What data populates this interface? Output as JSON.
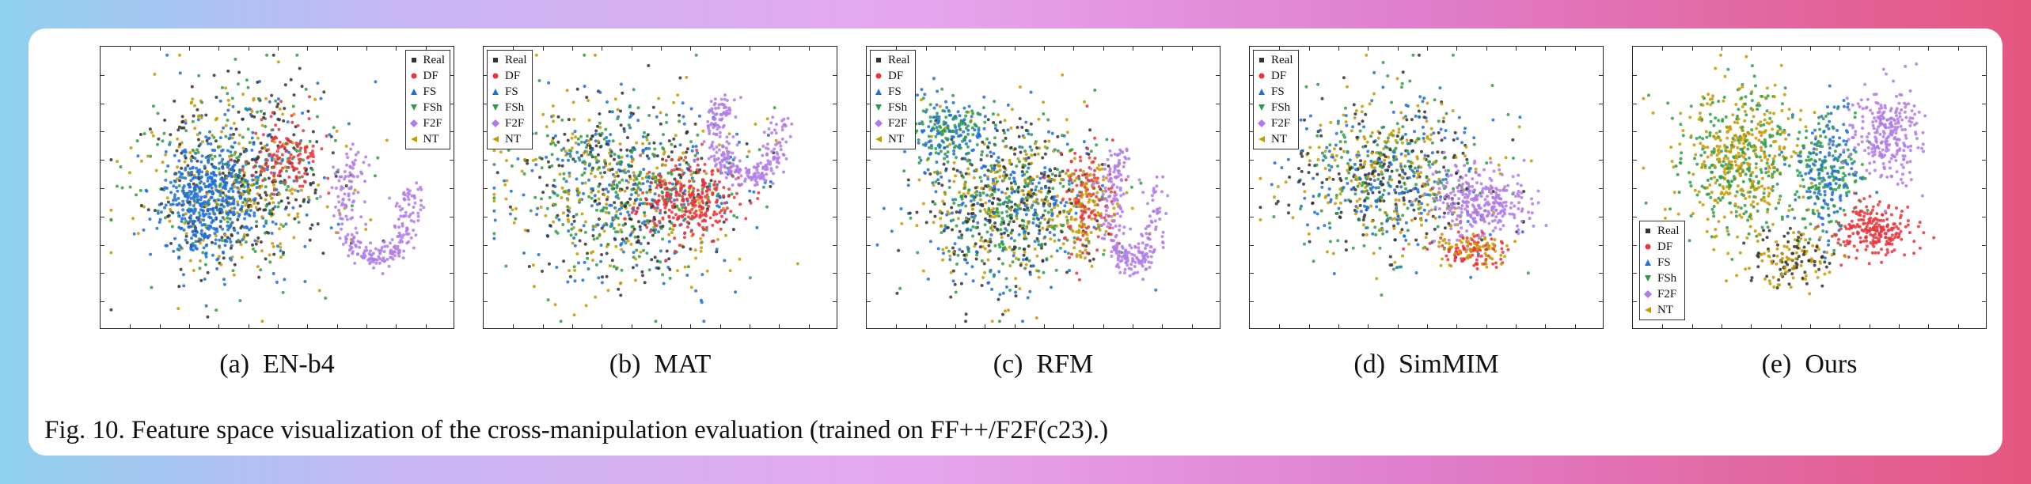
{
  "legend_items": [
    {
      "label": "Real",
      "color": "#333333",
      "marker": "square"
    },
    {
      "label": "DF",
      "color": "#e8353b",
      "marker": "circle"
    },
    {
      "label": "FS",
      "color": "#1f6fd6",
      "marker": "triangle-up"
    },
    {
      "label": "FSh",
      "color": "#2e9d47",
      "marker": "triangle-down"
    },
    {
      "label": "F2F",
      "color": "#b07be6",
      "marker": "diamond"
    },
    {
      "label": "NT",
      "color": "#c79a00",
      "marker": "triangle-left"
    }
  ],
  "panels": [
    {
      "caption_label": "(a)",
      "caption_name": "EN-b4",
      "legend_position": "top-right"
    },
    {
      "caption_label": "(b)",
      "caption_name": "MAT",
      "legend_position": "top-left"
    },
    {
      "caption_label": "(c)",
      "caption_name": "RFM",
      "legend_position": "top-left"
    },
    {
      "caption_label": "(d)",
      "caption_name": "SimMIM",
      "legend_position": "top-left"
    },
    {
      "caption_label": "(e)",
      "caption_name": "Ours",
      "legend_position": "bottom-left"
    }
  ],
  "figure_caption": "Fig. 10.  Feature space visualization of the cross-manipulation evaluation (trained on FF++/F2F(c23).)"
}
